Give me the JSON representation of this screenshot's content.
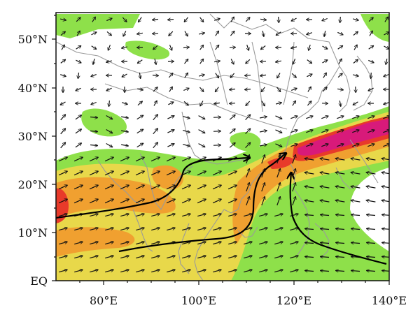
{
  "map": {
    "lat_labels": [
      "EQ",
      "10°N",
      "20°N",
      "30°N",
      "40°N",
      "50°N"
    ],
    "lon_labels": [
      "80°E",
      "100°E",
      "120°E",
      "140°E"
    ],
    "extent": {
      "lon": [
        70,
        140
      ],
      "lat": [
        0,
        55
      ]
    },
    "colors": {
      "moisture_low": "#8ee04a",
      "moisture_mid": "#e8d84a",
      "moisture_high": "#f0a030",
      "moisture_very_high": "#e83a2a",
      "moisture_max": "#d81a7a",
      "coastline": "#9a9a9a",
      "vectors": "#111111",
      "streamlines": "#000000"
    },
    "layers": [
      "shaded moisture flux",
      "wind vectors",
      "coastlines and borders",
      "moisture transport streamlines"
    ]
  }
}
